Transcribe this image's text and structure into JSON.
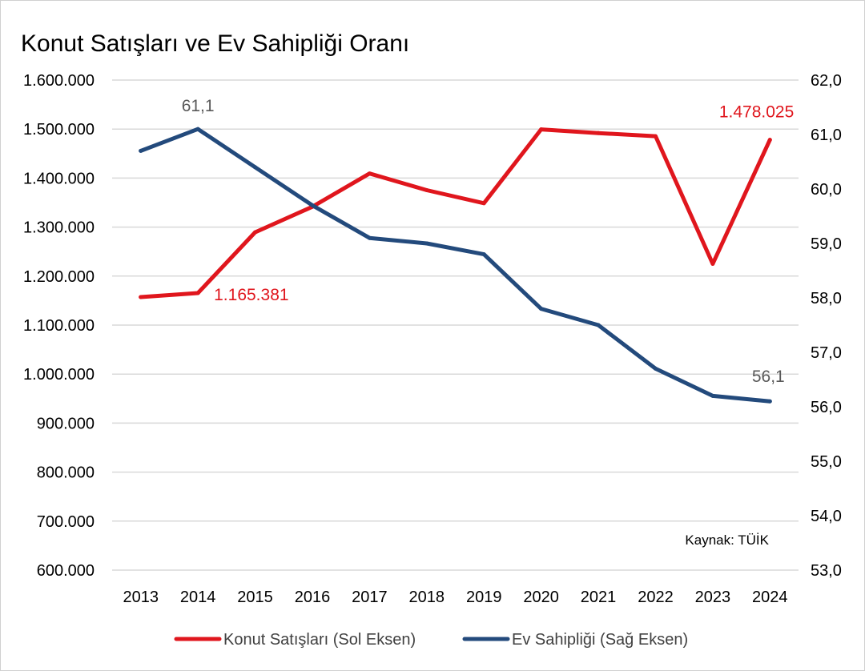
{
  "chart_data": {
    "type": "line",
    "title": "Konut Satışları ve Ev Sahipliği Oranı",
    "categories": [
      "2013",
      "2014",
      "2015",
      "2016",
      "2017",
      "2018",
      "2019",
      "2020",
      "2021",
      "2022",
      "2023",
      "2024"
    ],
    "left_axis": {
      "ylim": [
        600000,
        1600000
      ],
      "ticks": [
        600000,
        700000,
        800000,
        900000,
        1000000,
        1100000,
        1200000,
        1300000,
        1400000,
        1500000,
        1600000
      ],
      "tick_labels": [
        "600.000",
        "700.000",
        "800.000",
        "900.000",
        "1.000.000",
        "1.100.000",
        "1.200.000",
        "1.300.000",
        "1.400.000",
        "1.500.000",
        "1.600.000"
      ]
    },
    "right_axis": {
      "ylim": [
        53.0,
        62.0
      ],
      "ticks": [
        53,
        54,
        55,
        56,
        57,
        58,
        59,
        60,
        61,
        62
      ],
      "tick_labels": [
        "53,0",
        "54,0",
        "55,0",
        "56,0",
        "57,0",
        "58,0",
        "59,0",
        "60,0",
        "61,0",
        "62,0"
      ]
    },
    "series": [
      {
        "name": "Konut Satışları (Sol Eksen)",
        "axis": "left",
        "color": "#e0161d",
        "values": [
          1157190,
          1165381,
          1289320,
          1341453,
          1409314,
          1375398,
          1348729,
          1499316,
          1491856,
          1485468,
          1225006,
          1478025
        ]
      },
      {
        "name": "Ev Sahipliği (Sağ Eksen)",
        "axis": "right",
        "color": "#234a7c",
        "values": [
          60.7,
          61.1,
          60.4,
          59.7,
          59.1,
          59.0,
          58.8,
          57.8,
          57.5,
          56.7,
          56.2,
          56.1
        ]
      }
    ],
    "annotations": [
      {
        "series": 0,
        "index": 1,
        "text": "1.165.381"
      },
      {
        "series": 0,
        "index": 11,
        "text": "1.478.025"
      },
      {
        "series": 1,
        "index": 1,
        "text": "61,1"
      },
      {
        "series": 1,
        "index": 11,
        "text": "56,1"
      }
    ],
    "source_note": "Kaynak: TÜİK",
    "grid": true,
    "legend_position": "bottom"
  }
}
